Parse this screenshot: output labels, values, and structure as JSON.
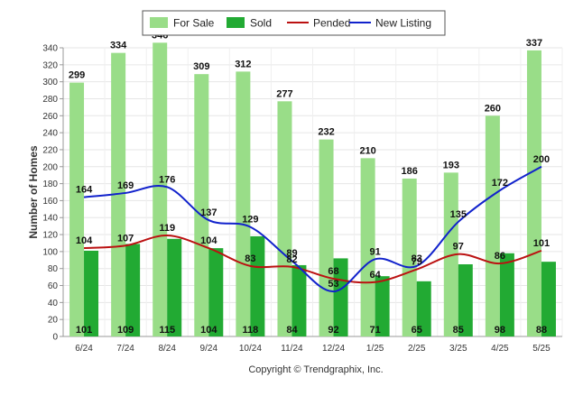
{
  "chart_data": {
    "type": "bar",
    "categories": [
      "6/24",
      "7/24",
      "8/24",
      "9/24",
      "10/24",
      "11/24",
      "12/24",
      "1/25",
      "2/25",
      "3/25",
      "4/25",
      "5/25"
    ],
    "series": [
      {
        "name": "For Sale",
        "kind": "bar",
        "color": "#99dd88",
        "values": [
          299,
          334,
          346,
          309,
          312,
          277,
          232,
          210,
          186,
          193,
          260,
          337
        ]
      },
      {
        "name": "Sold",
        "kind": "bar",
        "color": "#22aa33",
        "values": [
          101,
          109,
          115,
          104,
          118,
          84,
          92,
          71,
          65,
          85,
          98,
          88
        ]
      },
      {
        "name": "Pended",
        "kind": "line",
        "color": "#bb1111",
        "values": [
          104,
          107,
          119,
          104,
          83,
          82,
          68,
          64,
          79,
          97,
          86,
          101
        ]
      },
      {
        "name": "New Listing",
        "kind": "line",
        "color": "#1122cc",
        "values": [
          164,
          169,
          176,
          137,
          129,
          89,
          53,
          91,
          83,
          135,
          172,
          200
        ]
      }
    ],
    "ylabel": "Number of Homes",
    "ylim": [
      0,
      340
    ],
    "yticks": [
      "0",
      "20",
      "40",
      "60",
      "80",
      "100",
      "120",
      "140",
      "160",
      "180",
      "200",
      "220",
      "240",
      "260",
      "280",
      "300",
      "320",
      "340"
    ],
    "grid": true,
    "legend_position": "top-center"
  },
  "footer": {
    "copyright": "Copyright © Trendgraphix, Inc."
  }
}
